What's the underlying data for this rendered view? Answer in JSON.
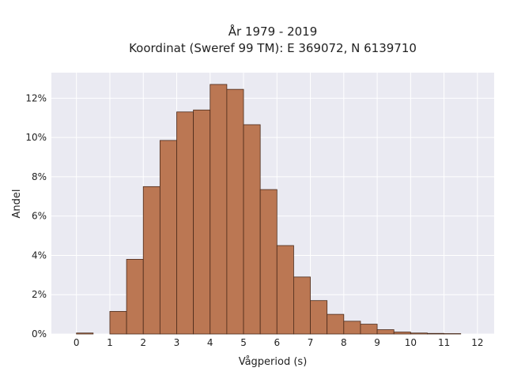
{
  "chart_data": {
    "type": "bar",
    "title": "År 1979 - 2019",
    "subtitle": "Koordinat (Sweref 99 TM): E 369072, N 6139710",
    "xlabel": "Vågperiod (s)",
    "ylabel": "Andel",
    "bin_width": 0.5,
    "xlim": [
      -0.75,
      12.5
    ],
    "ylim": [
      0,
      13.3
    ],
    "x_ticks": [
      0,
      1,
      2,
      3,
      4,
      5,
      6,
      7,
      8,
      9,
      10,
      11,
      12
    ],
    "y_ticks": [
      0,
      2,
      4,
      6,
      8,
      10,
      12
    ],
    "y_tick_format": "{v}%",
    "bin_starts": [
      0,
      1,
      1.5,
      2,
      2.5,
      3,
      3.5,
      4,
      4.5,
      5,
      5.5,
      6,
      6.5,
      7,
      7.5,
      8,
      8.5,
      9,
      9.5,
      10,
      10.5,
      11
    ],
    "values": [
      0.05,
      1.15,
      3.8,
      7.5,
      9.85,
      11.3,
      11.4,
      12.7,
      12.45,
      10.65,
      7.35,
      4.5,
      2.9,
      1.7,
      1.0,
      0.65,
      0.5,
      0.22,
      0.1,
      0.05,
      0.03,
      0.02
    ],
    "grid": true,
    "legend": "none",
    "colors": {
      "bar_fill": "#bb7753",
      "bar_edge": "#4a2a1a",
      "plot_background": "#eaeaf2",
      "grid": "#ffffff",
      "text": "#222222"
    }
  }
}
